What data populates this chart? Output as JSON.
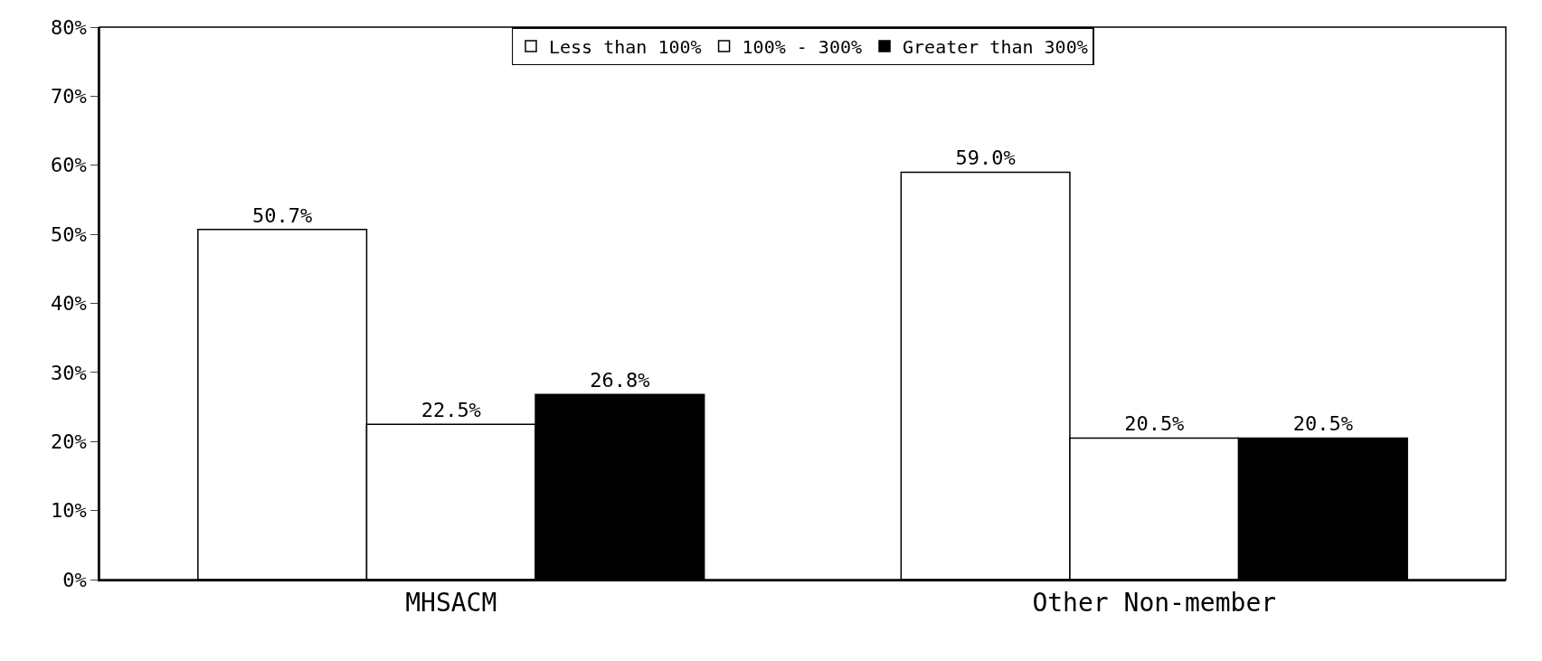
{
  "chart_data": {
    "type": "bar",
    "categories": [
      "MHSACM",
      "Other Non-member"
    ],
    "series": [
      {
        "name": "Less than 100%",
        "color": "#ffffff",
        "values": [
          50.7,
          59.0
        ],
        "value_labels": [
          "50.7%",
          "59.0%"
        ]
      },
      {
        "name": "100% - 300%",
        "color": "#ffffff",
        "values": [
          22.5,
          20.5
        ],
        "value_labels": [
          "22.5%",
          "20.5%"
        ]
      },
      {
        "name": "Greater than 300%",
        "color": "#000000",
        "values": [
          26.8,
          20.5
        ],
        "value_labels": [
          "26.8%",
          "20.5%"
        ]
      }
    ],
    "ylim": [
      0,
      80
    ],
    "yticks": [
      {
        "value": 0,
        "label": "0%"
      },
      {
        "value": 10,
        "label": "10%"
      },
      {
        "value": 20,
        "label": "20%"
      },
      {
        "value": 30,
        "label": "30%"
      },
      {
        "value": 40,
        "label": "40%"
      },
      {
        "value": 50,
        "label": "50%"
      },
      {
        "value": 60,
        "label": "60%"
      },
      {
        "value": 70,
        "label": "70%"
      },
      {
        "value": 80,
        "label": "80%"
      }
    ],
    "grid": false,
    "legend": "top"
  }
}
